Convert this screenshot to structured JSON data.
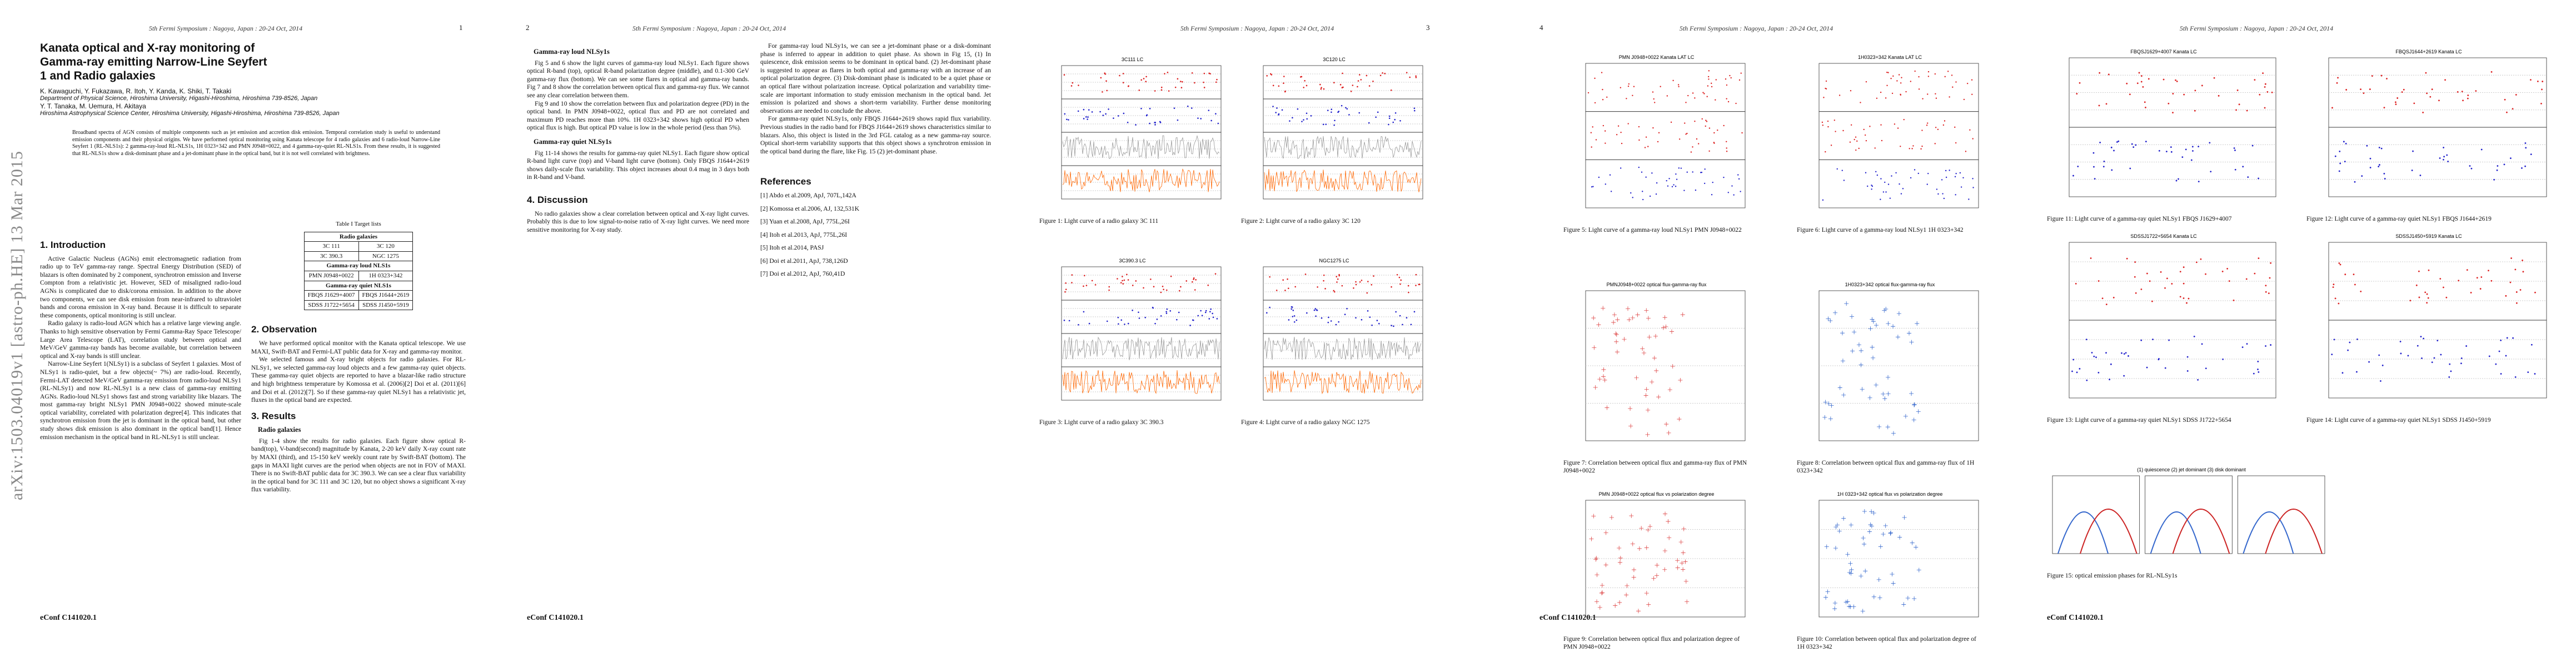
{
  "sidebar": "arXiv:1503.04019v1  [astro-ph.HE]  13 Mar 2015",
  "headers": [
    "5th Fermi Symposium : Nagoya, Japan : 20-24 Oct, 2014",
    "5th Fermi Symposium : Nagoya, Japan : 20-24 Oct, 2014",
    "5th Fermi Symposium : Nagoya, Japan : 20-24 Oct, 2014",
    "5th Fermi Symposium : Nagoya, Japan : 20-24 Oct, 2014",
    "5th Fermi Symposium : Nagoya, Japan : 20-24 Oct, 2014"
  ],
  "page_numbers": [
    "1",
    "2",
    "3",
    "4"
  ],
  "footers": [
    "eConf C141020.1",
    "eConf C141020.1",
    "eConf C141020.1",
    "eConf C141020.1"
  ],
  "title": "Kanata optical and X-ray monitoring of Gamma-ray emitting Narrow-Line Seyfert 1 and Radio galaxies",
  "authors": [
    "K. Kawaguchi, Y. Fukazawa, R. Itoh, Y. Kanda, K. Shiki, T. Takaki",
    "Y. T. Tanaka, M. Uemura, H. Akitaya"
  ],
  "affiliations": [
    "Department of Physical Science, Hiroshima University, Higashi-Hiroshima, Hiroshima 739-8526, Japan",
    "Hiroshima Astrophysical Science Center, Hiroshima University, Higashi-Hiroshima, Hiroshima 739-8526, Japan"
  ],
  "abstract": "Broadband spectra of AGN consists of multiple components such as jet emission and accretion disk emission. Temporal correlation study is useful to understand emission components and their physical origins. We have performed optical monitoring using Kanata telescope for 4 radio galaxies and 6 radio-loud Narrow-Line Seyfert 1 (RL-NLS1s): 2 gamma-ray-loud RL-NLS1s, 1H 0323+342 and PMN J0948+0022, and 4 gamma-ray-quiet RL-NLS1s. From these results, it is suggested that RL-NLS1s show a disk-dominant phase and a jet-dominant phase in the optical band, but it is not well correlated with brightness.",
  "introduction": {
    "heading": "1. Introduction",
    "paragraphs": [
      "Active Galactic Nucleus (AGNs) emit electromagnetic radiation from radio up to TeV gamma-ray range. Spectral Energy Distribution (SED) of blazars is often dominated by 2 component, synchrotron emission and Inverse Compton from a relativistic jet. However, SED of misaligned radio-loud AGNs is complicated due to disk/corona emission. In addition to the above two components, we can see disk emission from near-infrared to ultraviolet bands and corona emission in X-ray band. Because it is difficult to separate these components, optical monitoring is still unclear.",
      "Radio galaxy is radio-loud AGN which has a relative large viewing angle. Thanks to high sensitive observation by Fermi Gamma-Ray Space Telescope/ Large Area Telescope (LAT), correlation study between optical and MeV/GeV gamma-ray bands has become available, but correlation between optical and X-ray bands is still unclear.",
      "Narrow-Line Seyfert 1(NLSy1) is a subclass of Seyfert 1 galaxies. Most of NLSy1 is radio-quiet, but a few objects(~ 7%) are radio-loud. Recently, Fermi-LAT detected MeV/GeV gamma-ray emission from radio-loud NLSy1 (RL-NLSy1) and now RL-NLSy1 is a new class of gamma-ray emitting AGNs. Radio-loud NLSy1 shows fast and strong variability like blazars. The most gamma-ray bright NLSy1 PMN J0948+0022 showed minute-scale optical variability, correlated with polarization degree[4]. This indicates that synchrotron emission from the jet is dominant in the optical band, but other study shows disk emission is also dominant in the optical band[1]. Hence emission mechanism in the optical band in RL-NLSy1 is still unclear."
    ]
  },
  "table": {
    "caption": "Table I Target lists",
    "groups": [
      {
        "name": "Radio galaxies",
        "rows": [
          [
            "3C 111",
            "3C 120"
          ],
          [
            "3C 390.3",
            "NGC 1275"
          ]
        ]
      },
      {
        "name": "Gamma-ray loud NLS1s",
        "rows": [
          [
            "PMN J0948+0022",
            "1H 0323+342"
          ]
        ]
      },
      {
        "name": "Gamma-ray quiet NLS1s",
        "rows": [
          [
            "FBQS J1629+4007",
            "FBQS J1644+2619"
          ],
          [
            "SDSS J1722+5654",
            "SDSS J1450+5919"
          ]
        ]
      }
    ]
  },
  "observation": {
    "heading": "2. Observation",
    "paragraphs": [
      "We have performed optical monitor with the Kanata optical telescope. We use MAXI, Swift-BAT and Fermi-LAT public data for X-ray and gamma-ray monitor.",
      "We selected famous and X-ray bright objects for radio galaxies. For RL-NLSy1, we selected gamma-ray loud objects and a few gamma-ray quiet objects. These gamma-ray quiet objects are reported to have a blazar-like radio structure and high brightness temperature by Komossa et al. (2006)[2] Doi et al. (2011)[6] and Doi et al. (2012)[7]. So if these gamma-ray quiet NLSy1 has a relativistic jet, fluxes in the optical band are expected."
    ]
  },
  "results": {
    "heading": "3. Results",
    "subsections": [
      {
        "heading": "Radio galaxies",
        "paragraphs": [
          "Fig 1-4 show the results for radio galaxies. Each figure show optical R-band(top), V-band(second) magnitude by Kanata, 2-20 keV daily X-ray count rate by MAXI (third), and 15-150 keV weekly count rate by Swift-BAT (bottom). The gaps in MAXI light curves are the period when objects are not in FOV of MAXI. There is no Swift-BAT public data for 3C 390.3. We can see a clear flux variability in the optical band for 3C 111 and 3C 120, but no object shows a significant X-ray flux variability."
        ]
      },
      {
        "heading": "Gamma-ray loud NLSy1s",
        "paragraphs": [
          "Fig 5 and 6 show the light curves of gamma-ray loud NLSy1. Each figure shows optical R-band (top), optical R-band polarization degree (middle), and 0.1-300 GeV gamma-ray flux (bottom). We can see some flares in optical and gamma-ray bands. Fig 7 and 8 show the correlation between optical flux and gamma-ray flux. We cannot see any clear correlation between them.",
          "Fig 9 and 10 show the correlation between flux and polarization degree (PD) in the optical band. In PMN J0948+0022, optical flux and PD are not correlated and maximum PD reaches more than 10%. 1H 0323+342 shows high optical PD when optical flux is high. But optical PD value is low in the whole period (less than 5%)."
        ]
      },
      {
        "heading": "Gamma-ray quiet NLSy1s",
        "paragraphs": [
          "Fig 11-14 shows the results for gamma-ray quiet NLSy1. Each figure show optical R-band light curve (top) and V-band light curve (bottom). Only FBQS J1644+2619 shows daily-scale flux variability. This object increases about 0.4 mag in 3 days both in R-band and V-band."
        ]
      }
    ]
  },
  "discussion": {
    "heading": "4. Discussion",
    "paragraphs": [
      "No radio galaxies show a clear correlation between optical and X-ray light curves. Probably this is due to low signal-to-noise ratio of X-ray light curves. We need more sensitive monitoring for X-ray study.",
      "For gamma-ray loud NLSy1s, we can see a jet-dominant phase or a disk-dominant phase is inferred to appear in addition to quiet phase. As shown in Fig 15, (1) In quiescence, disk emission seems to be dominant in optical band. (2) Jet-dominant phase is suggested to appear as flares in both optical and gamma-ray with an increase of an optical polarization degree. (3) Disk-dominant phase is indicated to be a quiet phase or an optical flare without polarization increase. Optical polarization and variability time-scale are important information to study emission mechanism in the optical band. Jet emission is polarized and shows a short-term variability. Further dense monitoring observations are needed to conclude the above.",
      "For gamma-ray quiet NLSy1s, only FBQS J1644+2619 shows rapid flux variability. Previous studies in the radio band for FBQS J1644+2619 shows characteristics similar to blazars. Also, this object is listed in the 3rd FGL catalog as a new gamma-ray source. Optical short-term variability supports that this object shows a synchrotron emission in the optical band during the flare, like Fig. 15 (2) jet-dominant phase."
    ]
  },
  "references": {
    "heading": "References",
    "items": [
      "[1] Abdo et al.2009, ApJ, 707L,142A",
      "[2] Komossa et al.2006, AJ, 132,531K",
      "[3] Yuan et al.2008, ApJ, 775L,26I",
      "[4] Itoh et al.2013, ApJ, 775L,26I",
      "[5] Itoh et al.2014, PASJ",
      "[6] Doi et al.2011, ApJ, 738,126D",
      "[7] Doi et al.2012, ApJ, 760,41D"
    ]
  },
  "figures": [
    {
      "title": "3C111 LC",
      "caption": "Figure 1: Light curve of a radio galaxy 3C 111"
    },
    {
      "title": "3C120 LC",
      "caption": "Figure 2: Light curve of a radio galaxy 3C 120"
    },
    {
      "title": "3C390.3 LC",
      "caption": "Figure 3: Light curve of a radio galaxy 3C 390.3"
    },
    {
      "title": "NGC1275 LC",
      "caption": "Figure 4: Light curve of a radio galaxy NGC 1275"
    },
    {
      "title": "PMN J0948+0022 Kanata LAT LC",
      "caption": "Figure 5: Light curve of a gamma-ray loud NLSy1 PMN J0948+0022"
    },
    {
      "title": "1H0323+342 Kanata LAT LC",
      "caption": "Figure 6: Light curve of a gamma-ray loud NLSy1 1H 0323+342"
    },
    {
      "title": "PMNJ0948+0022 optical flux-gamma-ray flux",
      "caption": "Figure 7: Correlation between optical flux and gamma-ray flux of PMN J0948+0022"
    },
    {
      "title": "1H0323+342 optical flux-gamma-ray flux",
      "caption": "Figure 8: Correlation between optical flux and gamma-ray flux of 1H 0323+342"
    },
    {
      "title": "PMN J0948+0022 optical flux vs polarization degree",
      "caption": "Figure 9: Correlation between optical flux and polarization degree of PMN J0948+0022"
    },
    {
      "title": "1H 0323+342 optical flux vs polarization degree",
      "caption": "Figure 10: Correlation between optical flux and polarization degree of 1H 0323+342"
    },
    {
      "title": "FBQSJ1629+4007 Kanata LC",
      "caption": "Figure 11: Light curve of a gamma-ray quiet NLSy1 FBQS J1629+4007"
    },
    {
      "title": "FBQSJ1644+2619 Kanata LC",
      "caption": "Figure 12: Light curve of a gamma-ray quiet NLSy1 FBQS J1644+2619"
    },
    {
      "title": "SDSSJ1722+5654 Kanata LC",
      "caption": "Figure 13: Light curve of a gamma-ray quiet NLSy1 SDSS J1722+5654"
    },
    {
      "title": "SDSSJ1450+5919 Kanata LC",
      "caption": "Figure 14: Light curve of a gamma-ray quiet NLSy1 SDSS J1450+5919"
    },
    {
      "title": "(1) quiescence  (2) jet dominant  (3) disk dominant",
      "caption": "Figure 15: optical emission phases for RL-NLSy1s"
    }
  ]
}
